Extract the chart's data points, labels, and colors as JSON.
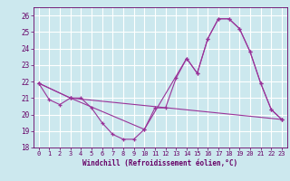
{
  "xlabel": "Windchill (Refroidissement éolien,°C)",
  "ylabel": "",
  "background_color": "#cce8ee",
  "grid_color": "#ffffff",
  "line_color": "#993399",
  "xlim": [
    -0.5,
    23.5
  ],
  "ylim": [
    18,
    26.5
  ],
  "yticks": [
    18,
    19,
    20,
    21,
    22,
    23,
    24,
    25,
    26
  ],
  "xticks": [
    0,
    1,
    2,
    3,
    4,
    5,
    6,
    7,
    8,
    9,
    10,
    11,
    12,
    13,
    14,
    15,
    16,
    17,
    18,
    19,
    20,
    21,
    22,
    23
  ],
  "series": [
    {
      "x": [
        0,
        1,
        2,
        3,
        4,
        5,
        6,
        7,
        8,
        9,
        10,
        11,
        12,
        13,
        14,
        15,
        16,
        17,
        18,
        19,
        20,
        21,
        22,
        23
      ],
      "y": [
        21.9,
        20.9,
        20.6,
        21.0,
        21.0,
        20.4,
        19.5,
        18.8,
        18.5,
        18.5,
        19.1,
        20.4,
        20.4,
        22.2,
        23.4,
        22.5,
        24.6,
        25.8,
        25.8,
        25.2,
        23.8,
        21.9,
        20.3,
        19.7
      ]
    },
    {
      "x": [
        0,
        3,
        10,
        14,
        15,
        16,
        17,
        18,
        19,
        20,
        21,
        22,
        23
      ],
      "y": [
        21.9,
        21.0,
        19.1,
        23.4,
        22.5,
        24.6,
        25.8,
        25.8,
        25.2,
        23.8,
        21.9,
        20.3,
        19.7
      ]
    },
    {
      "x": [
        0,
        3,
        23
      ],
      "y": [
        21.9,
        21.0,
        19.7
      ]
    }
  ]
}
